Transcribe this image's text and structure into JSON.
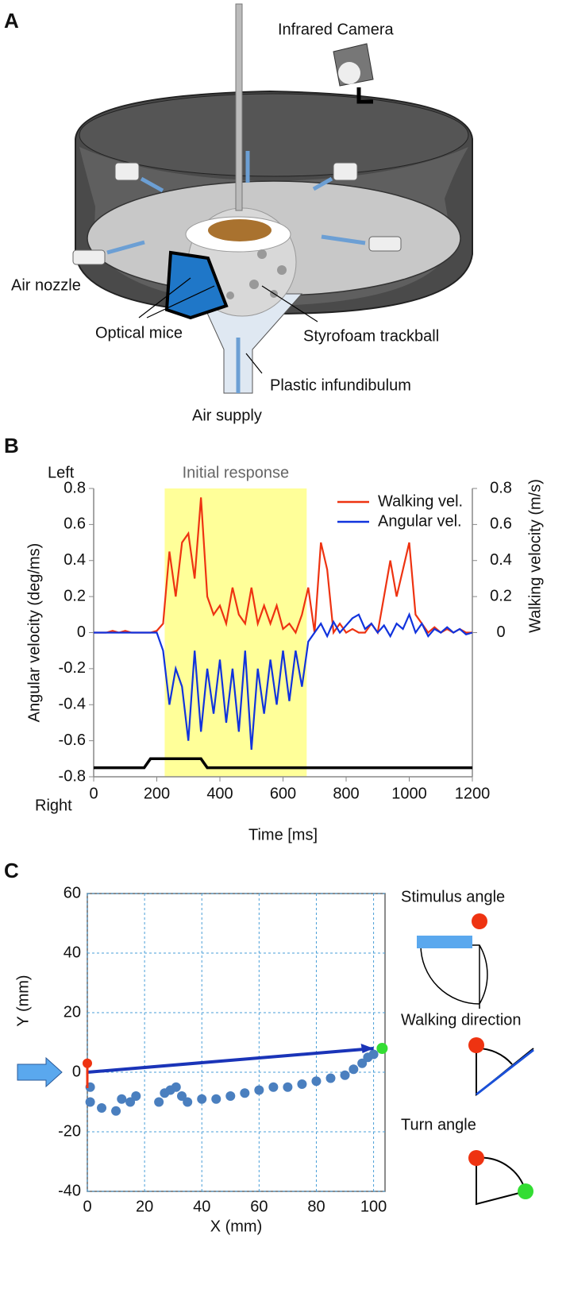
{
  "figure_a": {
    "panel_label": "A",
    "labels": [
      "Infrared Camera",
      "Air nozzle",
      "Optical mice",
      "Styrofoam trackball",
      "Plastic infundibulum",
      "Air supply"
    ]
  },
  "chart_data": [
    {
      "type": "line",
      "panel_label": "B",
      "highlight_label": "Initial response",
      "highlight": [
        225,
        675
      ],
      "highlight_color": "#ffff99",
      "top_note": "Left",
      "bottom_note": "Right",
      "x_label": "Time [ms]",
      "y_label": "Angular velocity (deg/ms)",
      "y2_label": "Walking velocity (m/s)",
      "x": [
        0,
        20,
        40,
        60,
        80,
        100,
        120,
        140,
        160,
        180,
        200,
        220,
        240,
        260,
        280,
        300,
        320,
        340,
        360,
        380,
        400,
        420,
        440,
        460,
        480,
        500,
        520,
        540,
        560,
        580,
        600,
        620,
        640,
        660,
        680,
        700,
        720,
        740,
        760,
        780,
        800,
        820,
        840,
        860,
        880,
        900,
        920,
        940,
        960,
        980,
        1000,
        1020,
        1040,
        1060,
        1080,
        1100,
        1120,
        1140,
        1160,
        1180,
        1200
      ],
      "series": [
        {
          "name": "Walking vel.",
          "color": "#ee3311",
          "axis": "y2",
          "values": [
            0,
            0,
            0,
            0.01,
            0,
            0.01,
            0,
            0,
            0,
            0,
            0.01,
            0.05,
            0.45,
            0.2,
            0.5,
            0.55,
            0.3,
            0.75,
            0.2,
            0.1,
            0.15,
            0.05,
            0.25,
            0.1,
            0.05,
            0.25,
            0.05,
            0.15,
            0.05,
            0.15,
            0.02,
            0.05,
            0,
            0.1,
            0.25,
            0,
            0.5,
            0.35,
            0,
            0.05,
            0,
            0.02,
            0,
            0,
            0.05,
            0,
            0.2,
            0.4,
            0.2,
            0.35,
            0.5,
            0.1,
            0.05,
            0,
            0.03,
            0,
            0.02,
            0,
            0.02,
            0,
            0
          ]
        },
        {
          "name": "Angular vel.",
          "color": "#1133dd",
          "values": [
            0,
            0,
            0,
            0,
            0,
            0,
            0,
            0,
            0,
            0,
            0,
            -0.1,
            -0.4,
            -0.2,
            -0.3,
            -0.6,
            -0.1,
            -0.55,
            -0.2,
            -0.45,
            -0.15,
            -0.5,
            -0.2,
            -0.55,
            -0.1,
            -0.65,
            -0.2,
            -0.45,
            -0.15,
            -0.4,
            -0.1,
            -0.38,
            -0.1,
            -0.3,
            -0.05,
            0,
            0.05,
            -0.02,
            0.06,
            0,
            0.04,
            0.08,
            0.1,
            0.02,
            0.05,
            0,
            0.04,
            -0.02,
            0.05,
            0.02,
            0.1,
            0,
            0.05,
            -0.02,
            0.02,
            0,
            0.03,
            0,
            0.02,
            -0.01,
            0
          ]
        }
      ],
      "stimulus": {
        "x": [
          0,
          160,
          180,
          340,
          360,
          1200
        ],
        "values": [
          -0.75,
          -0.75,
          -0.7,
          -0.7,
          -0.75,
          -0.75
        ],
        "color": "#000000"
      },
      "xlim": [
        0,
        1200
      ],
      "xticks": [
        0,
        200,
        400,
        600,
        800,
        1000,
        1200
      ],
      "ylim": [
        -0.8,
        0.8
      ],
      "yticks": [
        -0.8,
        -0.6,
        -0.4,
        -0.2,
        0,
        0.2,
        0.4,
        0.6,
        0.8
      ],
      "y2lim": [
        -0.8,
        0.8
      ],
      "y2ticks": [
        0,
        0.2,
        0.4,
        0.6,
        0.8
      ],
      "legend": "top-right"
    },
    {
      "type": "scatter",
      "panel_label": "C",
      "x_label": "X (mm)",
      "y_label": "Y (mm)",
      "color": "#4a7fbf",
      "x": [
        1,
        1,
        5,
        10,
        12,
        15,
        17,
        25,
        27,
        29,
        31,
        33,
        35,
        40,
        45,
        50,
        55,
        60,
        65,
        70,
        75,
        80,
        85,
        90,
        93,
        96,
        98,
        100
      ],
      "values": [
        -5,
        -10,
        -12,
        -13,
        -9,
        -10,
        -8,
        -10,
        -7,
        -6,
        -5,
        -8,
        -10,
        -9,
        -9,
        -8,
        -7,
        -6,
        -5,
        -5,
        -4,
        -3,
        -2,
        -1,
        1,
        3,
        5,
        6
      ],
      "vector": {
        "x": [
          0,
          100
        ],
        "y": [
          0,
          8
        ],
        "color": "#1a34b8"
      },
      "start_point": {
        "x": 0,
        "y": 3,
        "color": "#ee3311"
      },
      "end_point": {
        "x": 103,
        "y": 8,
        "color": "#33dd33"
      },
      "xlim": [
        0,
        104
      ],
      "xticks": [
        0,
        20,
        40,
        60,
        80,
        100
      ],
      "ylim": [
        -40,
        60
      ],
      "yticks": [
        -40,
        -20,
        0,
        20,
        40,
        60
      ],
      "grid": true,
      "side_labels": [
        "Stimulus angle",
        "Walking direction",
        "Turn angle"
      ]
    }
  ]
}
